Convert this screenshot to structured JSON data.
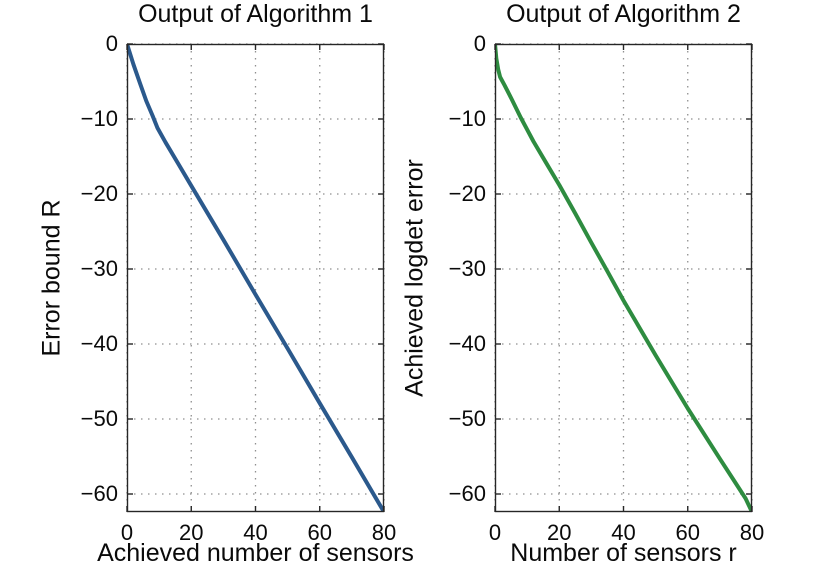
{
  "figure": {
    "background": "#ffffff",
    "grid_color": "#8f8f8f",
    "axis_color": "#262626"
  },
  "chart_data": [
    {
      "type": "line",
      "title": "Output of Algorithm 1",
      "xlabel": "Achieved number of sensors",
      "ylabel": "Error bound R",
      "xlim": [
        0,
        80
      ],
      "ylim": [
        -62.4,
        0
      ],
      "xticks": [
        0,
        20,
        40,
        60,
        80
      ],
      "yticks": [
        0,
        -10,
        -20,
        -30,
        -40,
        -50,
        -60
      ],
      "xtick_labels": [
        "0",
        "20",
        "40",
        "60",
        "80"
      ],
      "ytick_labels": [
        "0",
        "−10",
        "−20",
        "−30",
        "−40",
        "−50",
        "−60"
      ],
      "grid": "dotted",
      "legend": "none",
      "line_color": "#2b598c",
      "line_width": 4,
      "series": [
        {
          "name": "error-bound-curve",
          "x": [
            0,
            2,
            4,
            6,
            8,
            9.5,
            12,
            16,
            20,
            30,
            40,
            50,
            60,
            70,
            80
          ],
          "y": [
            0,
            -2.7,
            -5.2,
            -7.6,
            -9.6,
            -11.2,
            -13.1,
            -16.0,
            -18.9,
            -26.1,
            -33.4,
            -40.6,
            -47.9,
            -55.1,
            -62.4
          ]
        }
      ]
    },
    {
      "type": "line",
      "title": "Output of Algorithm 2",
      "xlabel": "Number of sensors r",
      "ylabel": "Achieved logdet error",
      "xlim": [
        0,
        80
      ],
      "ylim": [
        -62.4,
        0
      ],
      "xticks": [
        0,
        20,
        40,
        60,
        80
      ],
      "yticks": [
        0,
        -10,
        -20,
        -30,
        -40,
        -50,
        -60
      ],
      "xtick_labels": [
        "0",
        "20",
        "40",
        "60",
        "80"
      ],
      "ytick_labels": [
        "0",
        "−10",
        "−20",
        "−30",
        "−40",
        "−50",
        "−60"
      ],
      "grid": "dotted",
      "legend": "none",
      "line_color": "#2e8c40",
      "line_width": 4,
      "series": [
        {
          "name": "logdet-error-curve",
          "x": [
            0,
            0.4,
            1.0,
            1.6,
            3,
            5,
            8,
            12,
            16,
            20,
            25,
            30,
            35,
            40,
            50,
            60,
            70,
            75,
            78,
            80
          ],
          "y": [
            0,
            -1.9,
            -3.4,
            -4.4,
            -5.5,
            -7.2,
            -9.8,
            -13.0,
            -15.9,
            -18.8,
            -22.6,
            -26.5,
            -30.3,
            -34.2,
            -41.5,
            -48.6,
            -55.3,
            -58.6,
            -60.6,
            -62.4
          ]
        }
      ]
    }
  ]
}
